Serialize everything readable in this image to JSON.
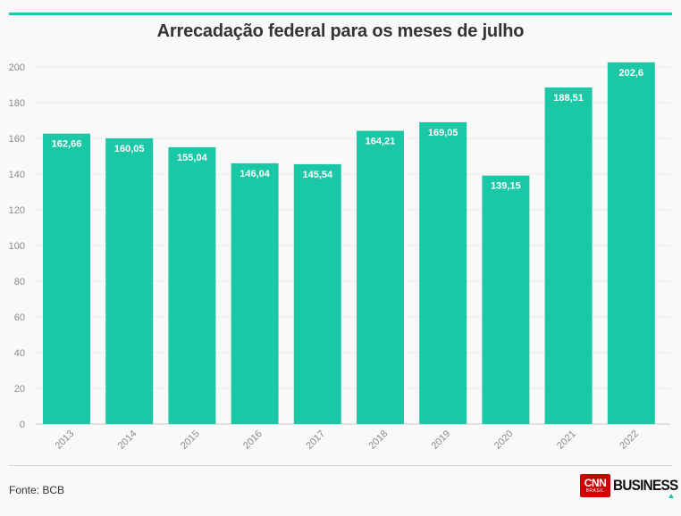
{
  "chart_data": {
    "type": "bar",
    "title": "Arrecadação federal para os meses de julho",
    "categories": [
      "2013",
      "2014",
      "2015",
      "2016",
      "2017",
      "2018",
      "2019",
      "2020",
      "2021",
      "2022"
    ],
    "values": [
      162.66,
      160.05,
      155.04,
      146.04,
      145.54,
      164.21,
      169.05,
      139.15,
      188.51,
      202.6
    ],
    "value_labels": [
      "162,66",
      "160,05",
      "155,04",
      "146,04",
      "145,54",
      "164,21",
      "169,05",
      "139,15",
      "188,51",
      "202,6"
    ],
    "ylim": [
      0,
      200
    ],
    "yticks": [
      0,
      20,
      40,
      60,
      80,
      100,
      120,
      140,
      160,
      180,
      200
    ],
    "xlabel": "",
    "ylabel": "",
    "grid": true,
    "bar_color": "#1ac8a6"
  },
  "footer": {
    "source": "Fonte: BCB",
    "logo_cnn": "CNN",
    "logo_brasil": "BRASIL",
    "logo_business": "BUSINESS"
  },
  "colors": {
    "accent": "#1ac8a6",
    "logo_red": "#cc0000"
  }
}
